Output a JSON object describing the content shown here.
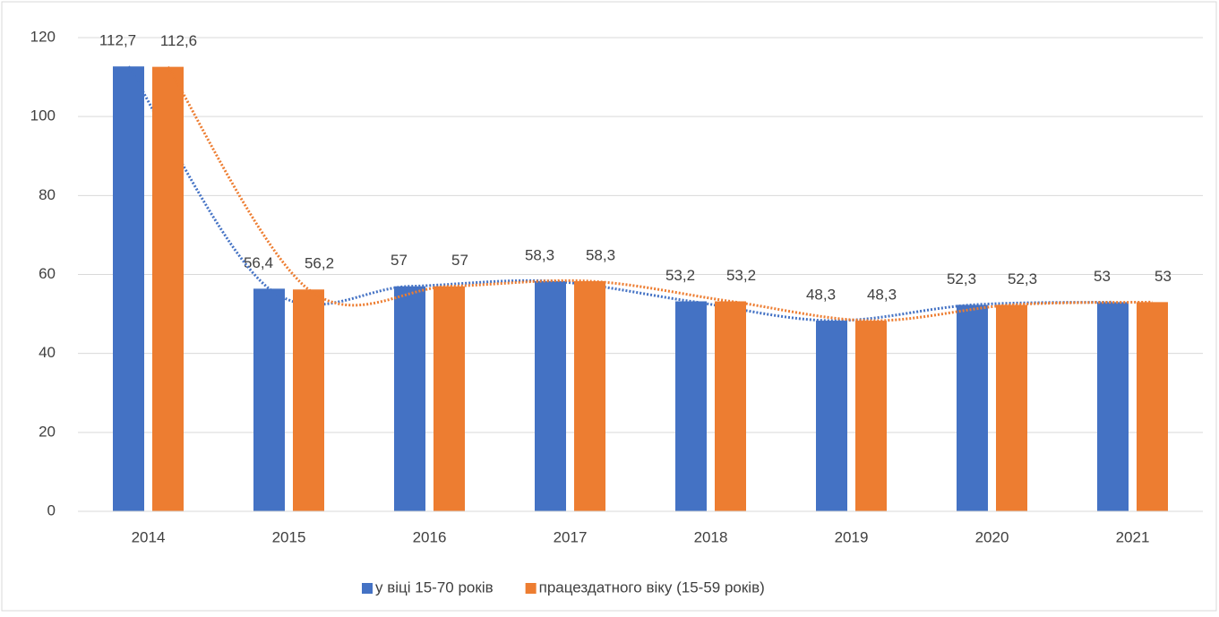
{
  "chart_data": {
    "type": "bar",
    "categories": [
      "2014",
      "2015",
      "2016",
      "2017",
      "2018",
      "2019",
      "2020",
      "2021"
    ],
    "series": [
      {
        "name": "у віці 15-70 років",
        "color": "#4472c4",
        "values": [
          112.7,
          56.4,
          57,
          58.3,
          53.2,
          48.3,
          52.3,
          53
        ],
        "value_labels": [
          "112,7",
          "56,4",
          "57",
          "58,3",
          "53,2",
          "48,3",
          "52,3",
          "53"
        ]
      },
      {
        "name": "працездатного віку (15-59 років)",
        "color": "#ed7d31",
        "values": [
          112.6,
          56.2,
          57,
          58.3,
          53.2,
          48.3,
          52.3,
          53
        ],
        "value_labels": [
          "112,6",
          "56,2",
          "57",
          "58,3",
          "53,2",
          "48,3",
          "52,3",
          "53"
        ]
      }
    ],
    "ylim": [
      0,
      120
    ],
    "yticks": [
      0,
      20,
      40,
      60,
      80,
      100,
      120
    ],
    "grid": true,
    "trendline": true,
    "legend": "bottom"
  }
}
